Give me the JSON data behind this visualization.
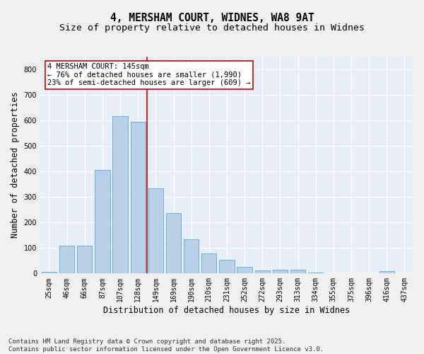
{
  "title_line1": "4, MERSHAM COURT, WIDNES, WA8 9AT",
  "title_line2": "Size of property relative to detached houses in Widnes",
  "xlabel": "Distribution of detached houses by size in Widnes",
  "ylabel": "Number of detached properties",
  "categories": [
    "25sqm",
    "46sqm",
    "66sqm",
    "87sqm",
    "107sqm",
    "128sqm",
    "149sqm",
    "169sqm",
    "190sqm",
    "210sqm",
    "231sqm",
    "252sqm",
    "272sqm",
    "293sqm",
    "313sqm",
    "334sqm",
    "355sqm",
    "375sqm",
    "396sqm",
    "416sqm",
    "437sqm"
  ],
  "values": [
    7,
    110,
    110,
    405,
    618,
    595,
    335,
    237,
    135,
    80,
    55,
    25,
    12,
    15,
    15,
    3,
    0,
    0,
    0,
    8,
    0
  ],
  "bar_color": "#b8d0e8",
  "bar_edge_color": "#6aaed6",
  "vline_color": "#cc0000",
  "annotation_text": "4 MERSHAM COURT: 145sqm\n← 76% of detached houses are smaller (1,990)\n23% of semi-detached houses are larger (609) →",
  "annotation_box_color": "#ffffff",
  "annotation_box_edge_color": "#cc0000",
  "ylim": [
    0,
    850
  ],
  "yticks": [
    0,
    100,
    200,
    300,
    400,
    500,
    600,
    700,
    800
  ],
  "background_color": "#e8eef8",
  "fig_background_color": "#f0f0f0",
  "footer_line1": "Contains HM Land Registry data © Crown copyright and database right 2025.",
  "footer_line2": "Contains public sector information licensed under the Open Government Licence v3.0.",
  "title_fontsize": 10.5,
  "subtitle_fontsize": 9.5,
  "axis_label_fontsize": 8.5,
  "tick_fontsize": 7,
  "annotation_fontsize": 7.5,
  "footer_fontsize": 6.5
}
